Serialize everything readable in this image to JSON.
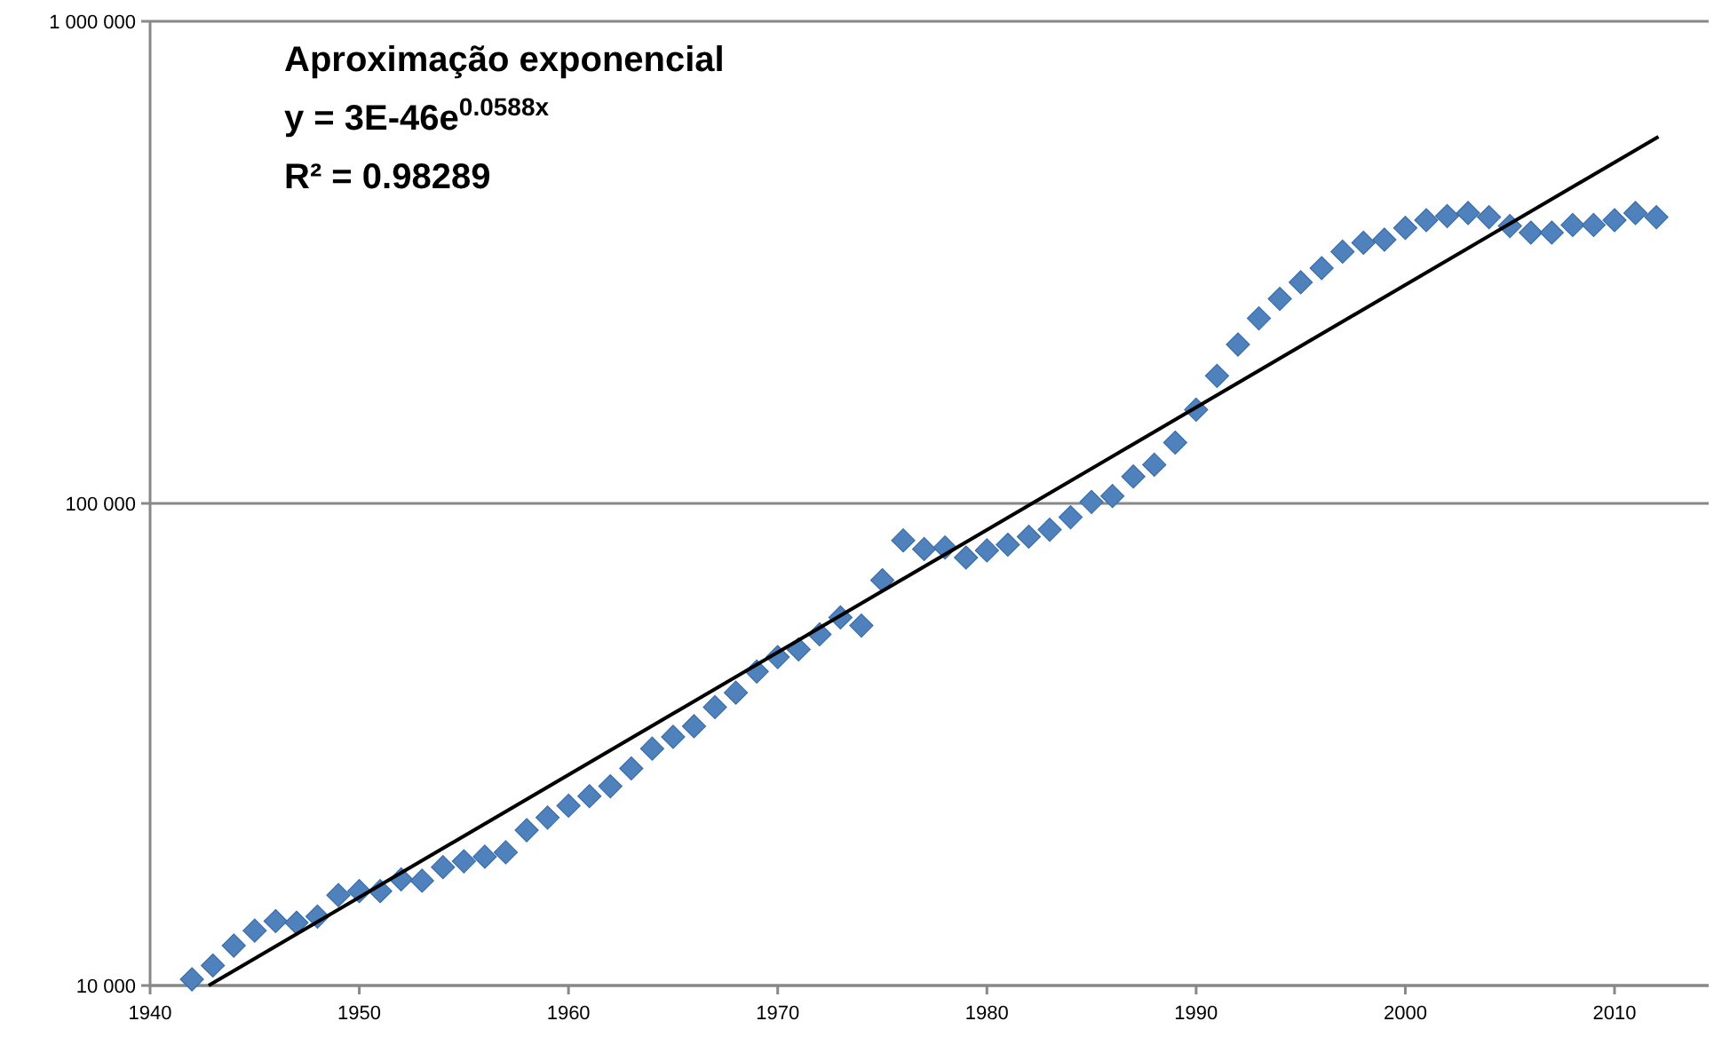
{
  "chart_data": {
    "type": "scatter",
    "annotations": [
      "Aproximação exponencial",
      "y = 3E-46e$^{0.0588x}$",
      "R² = 0.98289"
    ],
    "x": [
      1942,
      1943,
      1944,
      1945,
      1946,
      1947,
      1948,
      1949,
      1950,
      1951,
      1952,
      1953,
      1954,
      1955,
      1956,
      1957,
      1958,
      1959,
      1960,
      1961,
      1962,
      1963,
      1964,
      1965,
      1966,
      1967,
      1968,
      1969,
      1970,
      1971,
      1972,
      1973,
      1974,
      1975,
      1976,
      1977,
      1978,
      1979,
      1980,
      1981,
      1982,
      1983,
      1984,
      1985,
      1986,
      1987,
      1988,
      1989,
      1990,
      1991,
      1992,
      1993,
      1994,
      1995,
      1996,
      1997,
      1998,
      1999,
      2000,
      2001,
      2002,
      2003,
      2004,
      2005,
      2006,
      2007,
      2008,
      2009,
      2010,
      2011,
      2012
    ],
    "series": [
      {
        "color": "#4f81bd",
        "marker": "diamond",
        "values": [
          10300,
          11000,
          12100,
          13000,
          13600,
          13500,
          13900,
          15400,
          15700,
          15700,
          16600,
          16500,
          17600,
          18100,
          18500,
          18900,
          21000,
          22300,
          23600,
          24700,
          25900,
          28200,
          31000,
          32800,
          34500,
          37800,
          40500,
          44800,
          48000,
          49800,
          53500,
          58000,
          55800,
          69300,
          83800,
          80400,
          81000,
          77200,
          79900,
          82100,
          85300,
          88200,
          93600,
          100700,
          103600,
          113700,
          120300,
          133700,
          156500,
          183900,
          213600,
          242000,
          265700,
          287500,
          307600,
          332900,
          347300,
          352400,
          372900,
          386800,
          394500,
          400200,
          392400,
          376100,
          364500,
          364500,
          378000,
          378000,
          386800,
          400200,
          392400
        ]
      },
      {
        "type": "line",
        "color": "#000000",
        "line_style": "solid",
        "x": [
          1942.8,
          2012.1
        ],
        "values": [
          10000,
          576300
        ]
      }
    ],
    "log": "y",
    "grid": "y",
    "xlim": [
      1940,
      2014.5
    ],
    "xticks": [
      1940,
      1950,
      1960,
      1970,
      1980,
      1990,
      2000,
      2010
    ],
    "ylim": [
      10000,
      1000000
    ],
    "yticks": [
      {
        "value": 10000,
        "label": "10 000"
      },
      {
        "value": 100000,
        "label": "100 000"
      },
      {
        "value": 1000000,
        "label": "1 000 000"
      }
    ]
  }
}
